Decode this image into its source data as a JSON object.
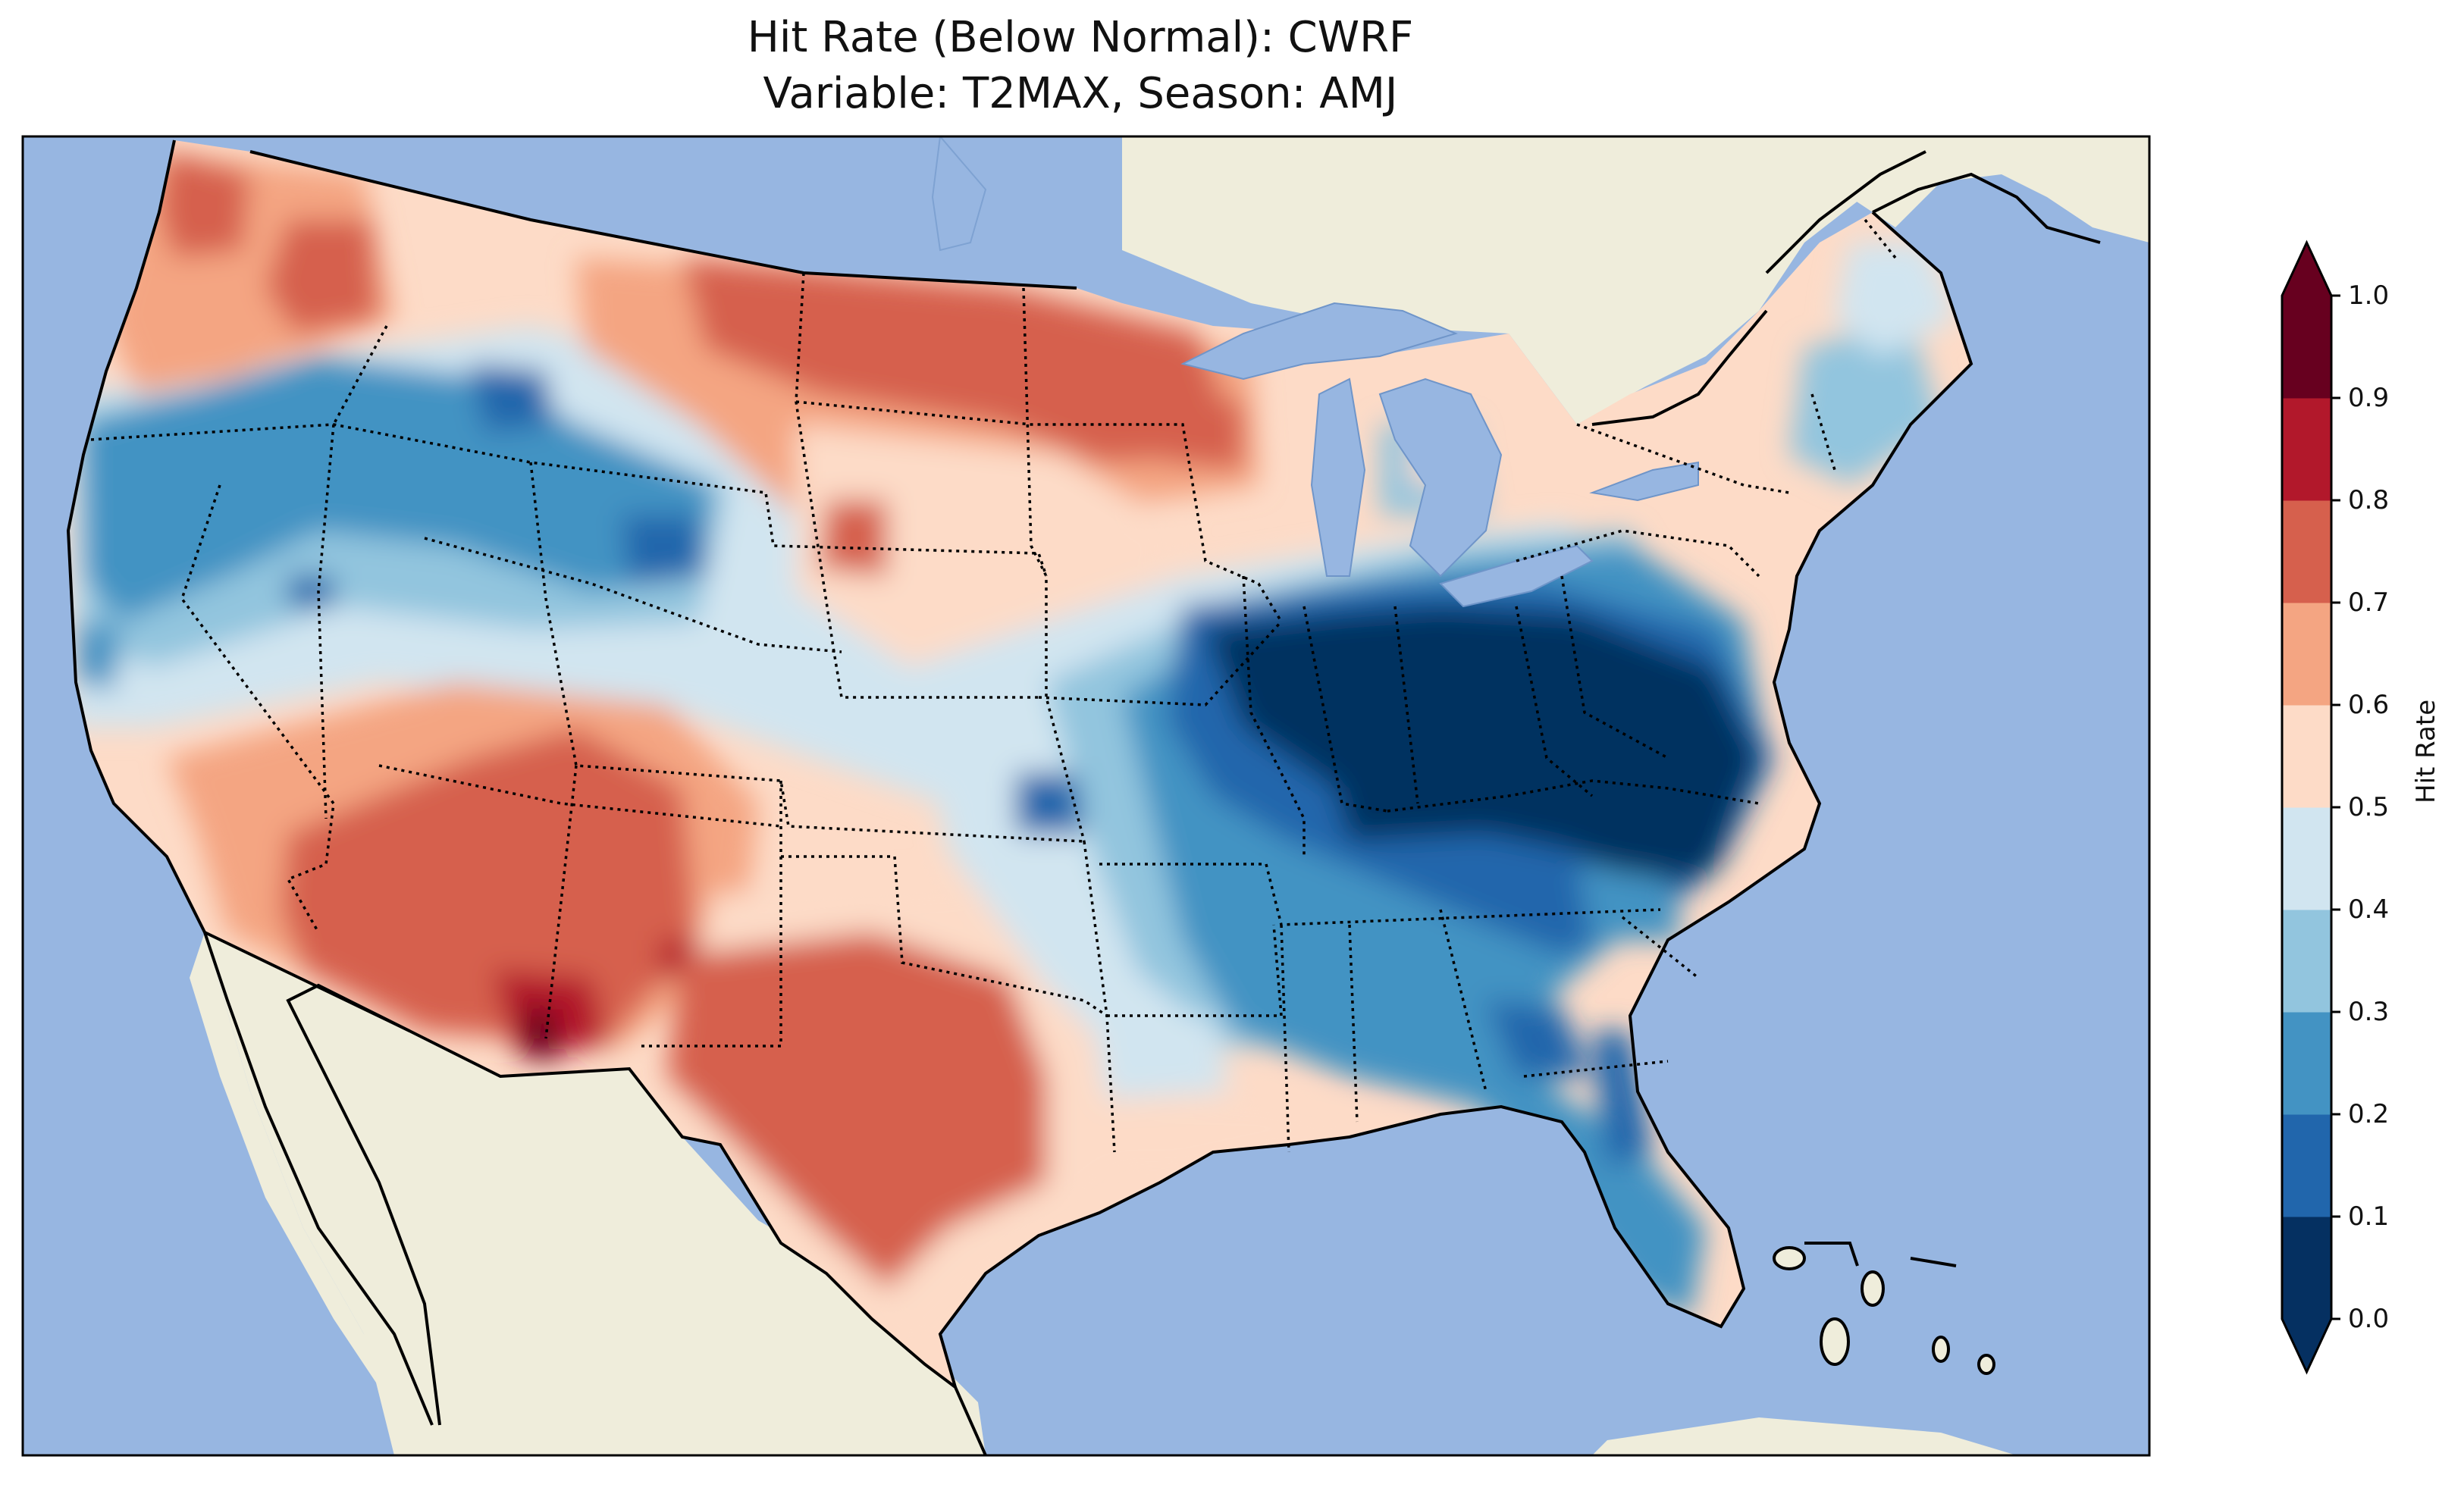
{
  "title_line1": "Hit Rate (Below Normal): CWRF",
  "title_line2": "Variable: T2MAX, Season: AMJ",
  "colorbar": {
    "label": "Hit Rate",
    "ticks": [
      "0.0",
      "0.1",
      "0.2",
      "0.3",
      "0.4",
      "0.5",
      "0.6",
      "0.7",
      "0.8",
      "0.9",
      "1.0"
    ],
    "colors": [
      "#053061",
      "#2166ac",
      "#4393c3",
      "#92c5de",
      "#d1e5f0",
      "#fddbc7",
      "#f4a582",
      "#d6604d",
      "#b2182b",
      "#67001f"
    ],
    "extend": "both"
  },
  "map_colors": {
    "ocean": "#97b6e1",
    "land": "#efeddb"
  }
}
